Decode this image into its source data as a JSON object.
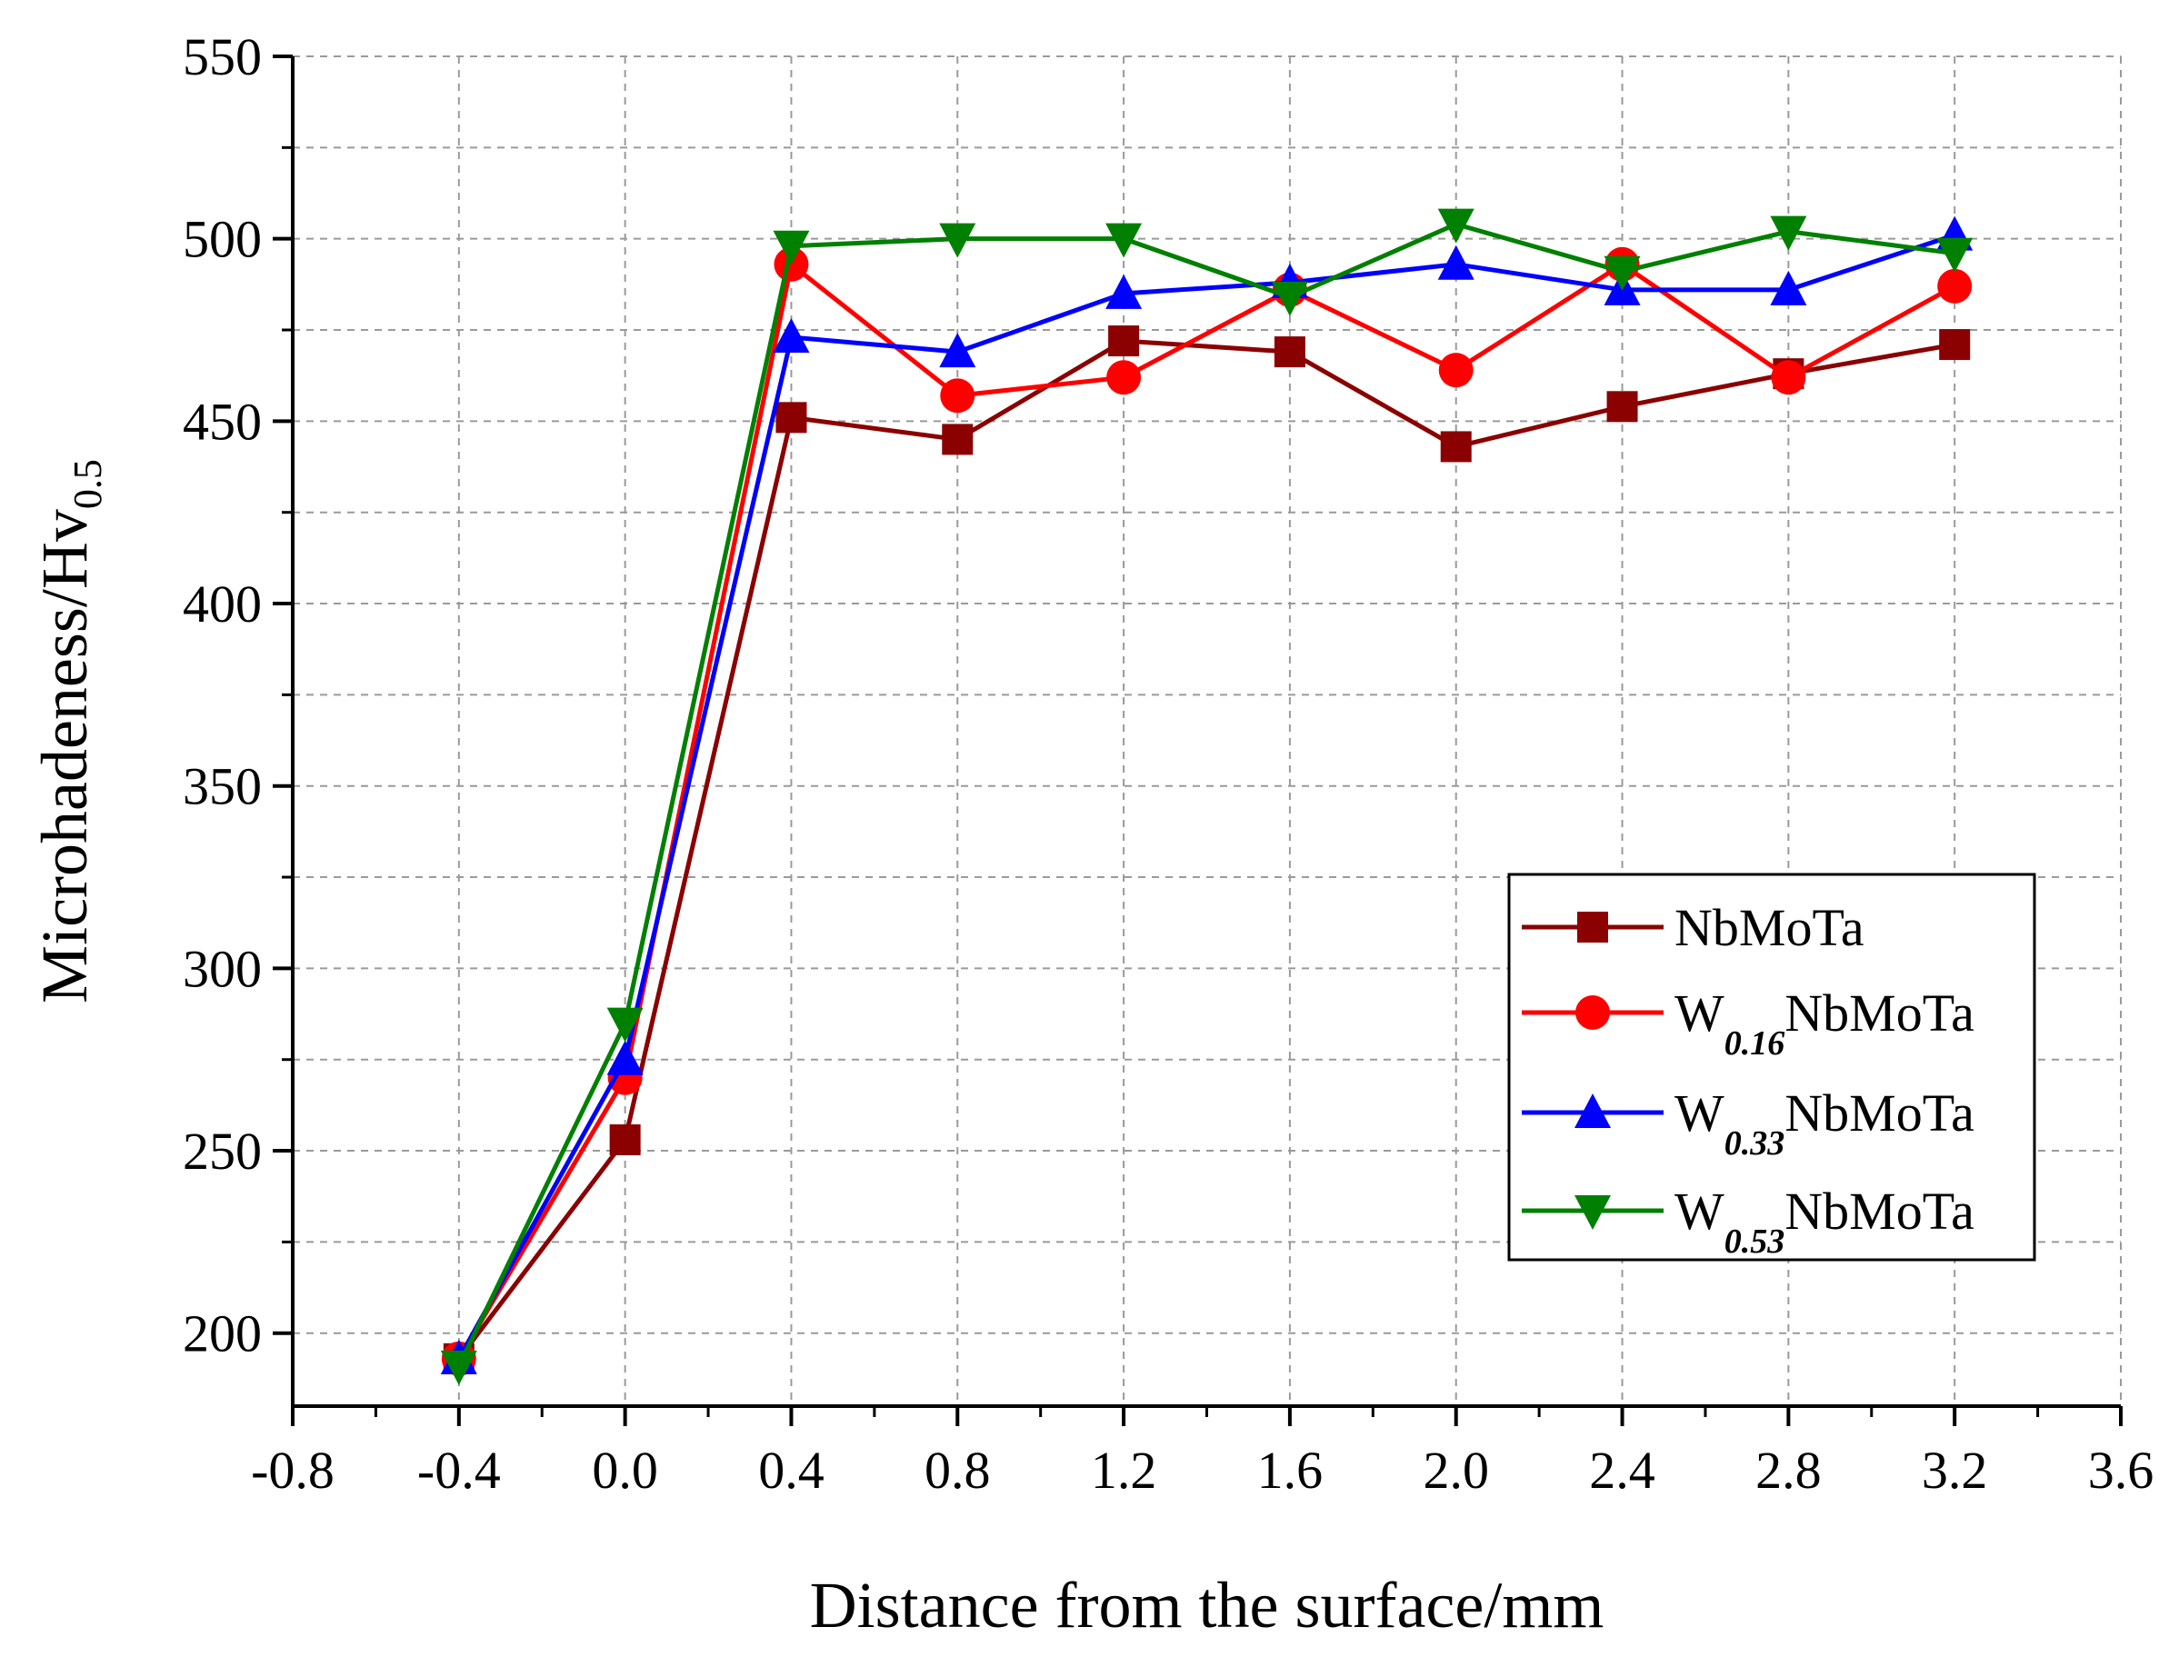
{
  "chart_data": {
    "type": "line",
    "title": "",
    "xlabel": "Distance from the surface/mm",
    "ylabel": "Microhadeness/Hv",
    "ylabel_subscript": "0.5",
    "xlim": [
      -0.8,
      3.6
    ],
    "ylim": [
      180,
      550
    ],
    "x_ticks": [
      -0.8,
      -0.4,
      0.0,
      0.4,
      0.8,
      1.2,
      1.6,
      2.0,
      2.4,
      2.8,
      3.2,
      3.6
    ],
    "x_tick_labels": [
      "-0.8",
      "-0.4",
      "0.0",
      "0.4",
      "0.8",
      "1.2",
      "1.6",
      "2.0",
      "2.4",
      "2.8",
      "3.2",
      "3.6"
    ],
    "y_ticks": [
      200,
      250,
      300,
      350,
      400,
      450,
      500,
      550
    ],
    "y_tick_labels": [
      "200",
      "250",
      "300",
      "350",
      "400",
      "450",
      "500",
      "550"
    ],
    "grid": true,
    "legend_position": "center-right",
    "x": [
      -0.4,
      0.0,
      0.4,
      0.8,
      1.2,
      1.6,
      2.0,
      2.4,
      2.8,
      3.2
    ],
    "series": [
      {
        "name": "NbMoTa",
        "legend_main": "NbMoTa",
        "legend_prefix": "",
        "legend_sub": "",
        "color": "#8B0000",
        "marker": "square",
        "values": [
          193,
          253,
          451,
          445,
          472,
          469,
          443,
          454,
          463,
          471
        ]
      },
      {
        "name": "W0.16NbMoTa",
        "legend_main": "NbMoTa",
        "legend_prefix": "W",
        "legend_sub": "0.16",
        "color": "#FF0000",
        "marker": "circle",
        "values": [
          193,
          270,
          493,
          457,
          462,
          486,
          464,
          493,
          462,
          487
        ]
      },
      {
        "name": "W0.33NbMoTa",
        "legend_main": "NbMoTa",
        "legend_prefix": "W",
        "legend_sub": "0.33",
        "color": "#0000FF",
        "marker": "triangle-up",
        "values": [
          193,
          275,
          473,
          469,
          485,
          488,
          493,
          486,
          486,
          501
        ]
      },
      {
        "name": "W0.53NbMoTa",
        "legend_main": "NbMoTa",
        "legend_prefix": "W",
        "legend_sub": "0.53",
        "color": "#008000",
        "marker": "triangle-down",
        "values": [
          191,
          285,
          498,
          500,
          500,
          484,
          504,
          491,
          502,
          496
        ]
      }
    ]
  }
}
